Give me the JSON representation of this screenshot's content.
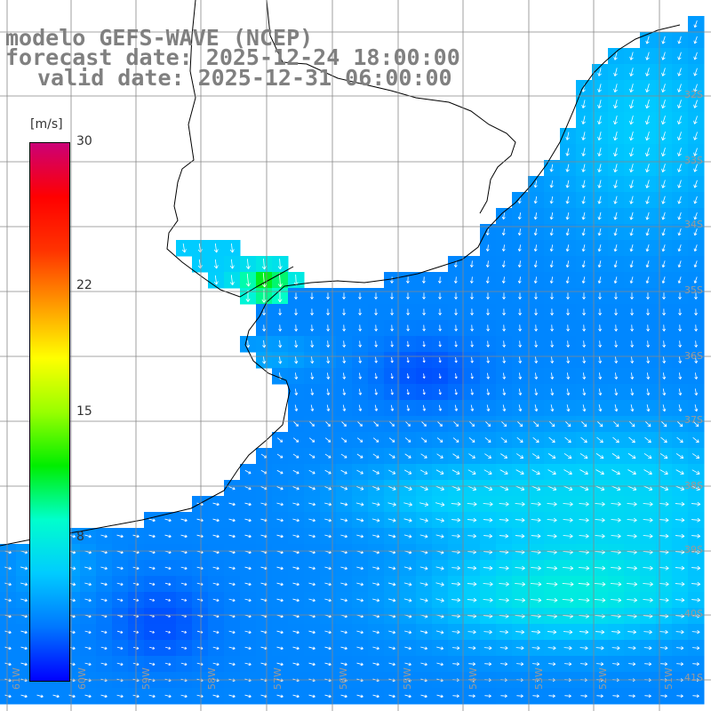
{
  "title": {
    "line1": "modelo GEFS-WAVE (NCEP)",
    "line2": "forecast date: 2025-12-24 18:00:00",
    "line3": "valid date: 2025-12-31 06:00:00"
  },
  "colorbar": {
    "unit": "[m/s]",
    "ticks": [
      "30",
      "22",
      "15",
      "8"
    ],
    "tick_values": [
      30,
      22,
      15,
      8
    ],
    "range": [
      0,
      30
    ],
    "colors": [
      "#0000ff",
      "#0077ff",
      "#00ccff",
      "#00ffcc",
      "#00ee00",
      "#99ff00",
      "#ffff00",
      "#ff9900",
      "#ff3300",
      "#ff0000",
      "#cc0077"
    ]
  },
  "lat_labels": [
    "32S",
    "33S",
    "34S",
    "35S",
    "36S",
    "37S",
    "38S",
    "39S",
    "40S",
    "41S"
  ],
  "lon_labels": [
    "61W",
    "60W",
    "59W",
    "58W",
    "57W",
    "56W",
    "55W",
    "54W",
    "53W",
    "52W",
    "51W"
  ],
  "map": {
    "region": "South Atlantic off Uruguay / Rio de la Plata",
    "land_color": "#ffffff",
    "coast_color": "#000000",
    "grid_color": "#888888"
  }
}
